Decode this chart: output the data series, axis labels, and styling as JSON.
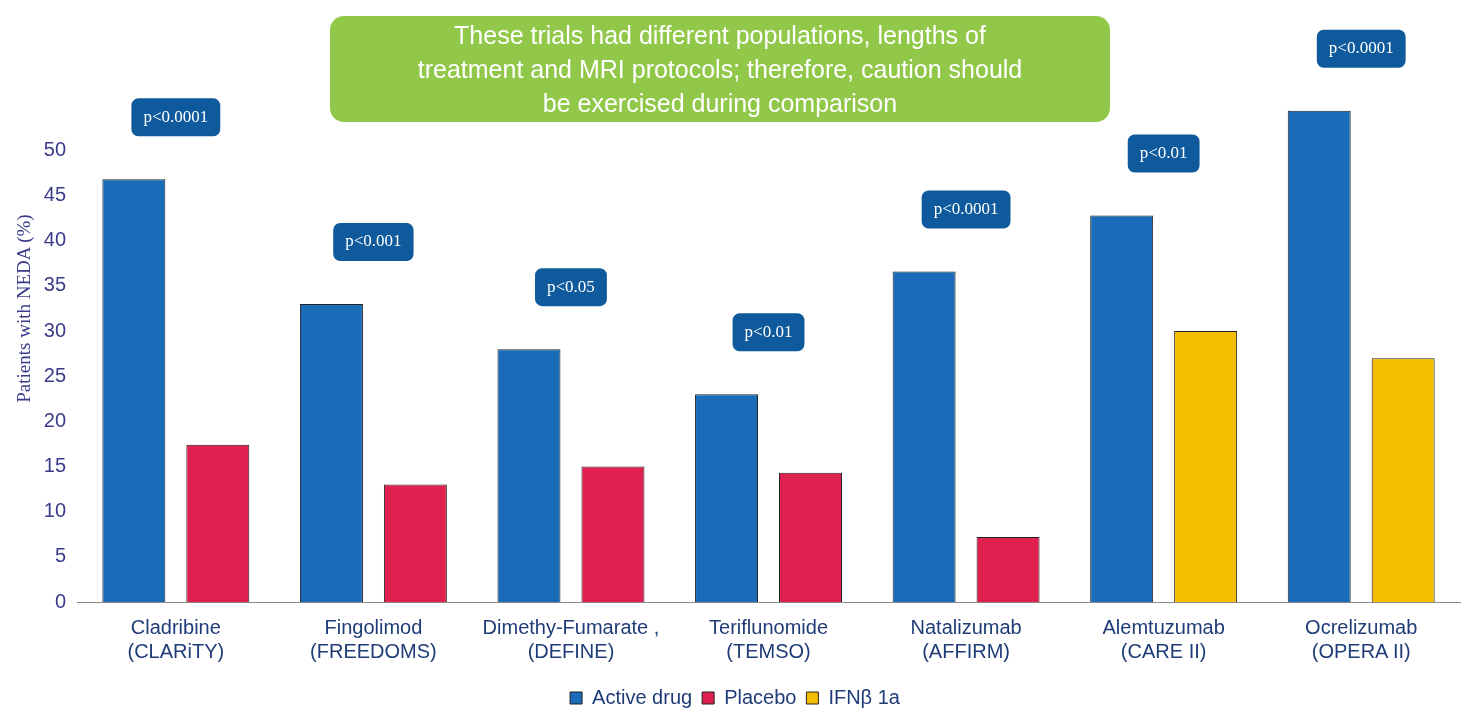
{
  "chart_data": {
    "type": "bar",
    "ylabel": "Patients with NEDA (%)",
    "categories": [
      "Cladribine\n(CLARiTY)",
      "Fingolimod\n(FREEDOMS)",
      "Dimethy-Fumarate ,\n(DEFINE)",
      "Teriflunomide\n(TEMSO)",
      "Natalizumab\n(AFFIRM)",
      "Alemtuzumab\n(CARE II)",
      "Ocrelizumab\n(OPERA II)"
    ],
    "series": [
      {
        "name": "Active drug",
        "color": "#1a6cb8",
        "values": [
          46.8,
          33,
          28,
          23,
          36.6,
          42.8,
          54.4
        ]
      },
      {
        "name": "Placebo",
        "color": "#e0204f",
        "values": [
          17.4,
          13,
          15,
          14.3,
          7.2,
          null,
          null
        ]
      },
      {
        "name": "IFNβ 1a",
        "color": "#f5bd00",
        "values": [
          null,
          null,
          null,
          null,
          null,
          30,
          27
        ]
      }
    ],
    "ylim": [
      0,
      65
    ],
    "yticks": [
      0,
      5,
      10,
      15,
      20,
      25,
      30,
      35,
      40,
      45,
      50
    ],
    "grid": false,
    "legend": "bottom",
    "annotations": [
      "These trials had different populations, lengths of treatment and MRI protocols; therefore, caution should be exercised during comparison",
      "p<0.0001",
      "p<0.001",
      "p<0.05",
      "p<0.01",
      "p<0.0001",
      "p<0.01",
      "p<0.0001"
    ]
  }
}
